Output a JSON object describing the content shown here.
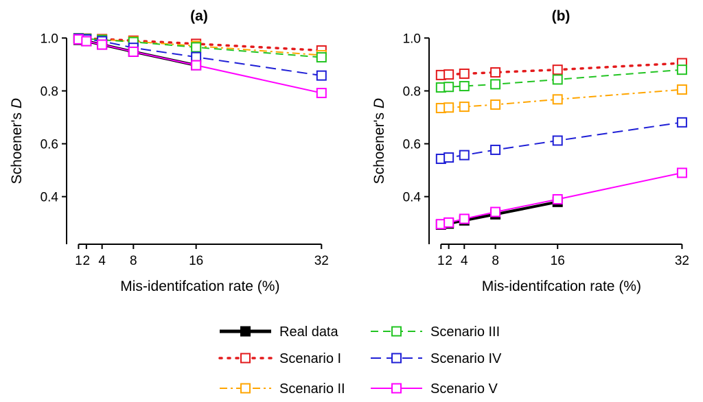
{
  "chart_data": [
    {
      "type": "line",
      "title": "(a)",
      "xlabel": "Mis-identifcation rate (%)",
      "ylabel_prefix": "Schoener's ",
      "ylabel_italic": "D",
      "x": [
        1,
        2,
        4,
        8,
        16,
        32
      ],
      "xticks": [
        1,
        2,
        4,
        8,
        16,
        32
      ],
      "xtick_labels": [
        "1",
        "2",
        "4",
        "8",
        "16",
        "32"
      ],
      "yticks": [
        0.4,
        0.6,
        0.8,
        1.0
      ],
      "ytick_labels": [
        "0.4",
        "0.6",
        "0.8",
        "1.0"
      ],
      "xlim": [
        0,
        33.2
      ],
      "ylim": [
        0.22,
        1.04
      ],
      "series": [
        {
          "name": "Real data",
          "values": [
            0.993,
            0.988,
            0.975,
            0.948,
            0.897,
            null
          ]
        },
        {
          "name": "Scenario I",
          "values": [
            0.999,
            0.998,
            0.996,
            0.99,
            0.978,
            0.953
          ]
        },
        {
          "name": "Scenario II",
          "values": [
            0.999,
            0.997,
            0.994,
            0.987,
            0.97,
            0.935
          ]
        },
        {
          "name": "Scenario III",
          "values": [
            0.999,
            0.997,
            0.993,
            0.985,
            0.965,
            0.927
          ]
        },
        {
          "name": "Scenario IV",
          "values": [
            0.998,
            0.995,
            0.988,
            0.963,
            0.928,
            0.858
          ]
        },
        {
          "name": "Scenario V",
          "values": [
            0.995,
            0.988,
            0.975,
            0.948,
            0.897,
            0.792
          ]
        }
      ]
    },
    {
      "type": "line",
      "title": "(b)",
      "xlabel": "Mis-identifcation rate (%)",
      "ylabel_prefix": "Schoener's ",
      "ylabel_italic": "D",
      "x": [
        1,
        2,
        4,
        8,
        16,
        32
      ],
      "xticks": [
        1,
        2,
        4,
        8,
        16,
        32
      ],
      "xtick_labels": [
        "1",
        "2",
        "4",
        "8",
        "16",
        "32"
      ],
      "yticks": [
        0.4,
        0.6,
        0.8,
        1.0
      ],
      "ytick_labels": [
        "0.4",
        "0.6",
        "0.8",
        "1.0"
      ],
      "xlim": [
        0,
        33.2
      ],
      "ylim": [
        0.22,
        1.04
      ],
      "series": [
        {
          "name": "Real data",
          "values": [
            0.294,
            0.298,
            0.31,
            0.333,
            0.38,
            null
          ]
        },
        {
          "name": "Scenario I",
          "values": [
            0.86,
            0.862,
            0.865,
            0.87,
            0.88,
            0.905
          ]
        },
        {
          "name": "Scenario II",
          "values": [
            0.735,
            0.737,
            0.74,
            0.748,
            0.768,
            0.805
          ]
        },
        {
          "name": "Scenario III",
          "values": [
            0.813,
            0.815,
            0.818,
            0.825,
            0.843,
            0.88
          ]
        },
        {
          "name": "Scenario IV",
          "values": [
            0.543,
            0.548,
            0.557,
            0.577,
            0.612,
            0.681
          ]
        },
        {
          "name": "Scenario V",
          "values": [
            0.296,
            0.302,
            0.316,
            0.342,
            0.39,
            0.49
          ]
        }
      ]
    }
  ],
  "styles": {
    "Real data": {
      "color": "#000000",
      "dash": "",
      "width": 4,
      "marker": "filled-square"
    },
    "Scenario I": {
      "color": "#e31a1c",
      "dash": "3 9",
      "width": 3.5,
      "marker": "open-square"
    },
    "Scenario II": {
      "color": "#ffa500",
      "dash": "11 5 3 5",
      "width": 2,
      "marker": "open-square"
    },
    "Scenario III": {
      "color": "#22c422",
      "dash": "11 7",
      "width": 2,
      "marker": "open-square"
    },
    "Scenario IV": {
      "color": "#1f1fd6",
      "dash": "15 8",
      "width": 2,
      "marker": "open-square"
    },
    "Scenario V": {
      "color": "#ff00ff",
      "dash": "",
      "width": 2,
      "marker": "open-square"
    }
  },
  "legend": {
    "position": "bottom",
    "entries": [
      {
        "key": "Real data",
        "label": "Real data"
      },
      {
        "key": "Scenario III",
        "label": "Scenario III"
      },
      {
        "key": "Scenario I",
        "label": "Scenario I"
      },
      {
        "key": "Scenario IV",
        "label": "Scenario IV"
      },
      {
        "key": "Scenario II",
        "label": "Scenario II"
      },
      {
        "key": "Scenario V",
        "label": "Scenario V"
      }
    ]
  }
}
